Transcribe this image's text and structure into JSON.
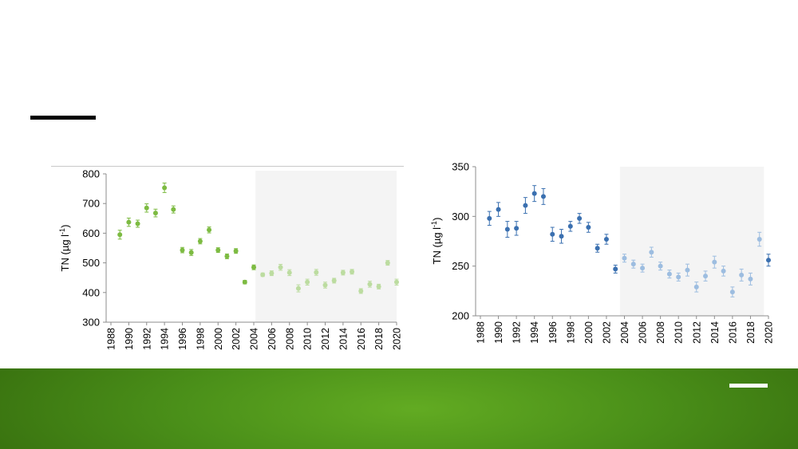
{
  "chart_data": [
    {
      "type": "scatter",
      "ylabel": "TN (µg l",
      "ylabel_sup": "-1",
      "ylabel_close": ")",
      "xlim": [
        1988,
        2020
      ],
      "ylim": [
        300,
        800
      ],
      "yticks": [
        300,
        400,
        500,
        600,
        700,
        800
      ],
      "xticks": [
        1988,
        1990,
        1992,
        1994,
        1996,
        1998,
        2000,
        2002,
        2004,
        2006,
        2008,
        2010,
        2012,
        2014,
        2016,
        2018,
        2020
      ],
      "shaded_from": 2004.2,
      "color_main": "#7dbb42",
      "color_light": "#bcdca0",
      "series": [
        {
          "x": [
            1989,
            1990,
            1991,
            1992,
            1993,
            1994,
            1995,
            1996,
            1997,
            1998,
            1999,
            2000,
            2001,
            2002,
            2003,
            2004
          ],
          "y": [
            595,
            637,
            632,
            685,
            668,
            753,
            680,
            543,
            535,
            573,
            611,
            543,
            522,
            540,
            435,
            485
          ],
          "err": [
            15,
            14,
            12,
            14,
            13,
            16,
            12,
            9,
            10,
            9,
            10,
            8,
            8,
            8,
            6,
            8
          ]
        },
        {
          "x": [
            2005,
            2006,
            2007,
            2008,
            2009,
            2010,
            2011,
            2012,
            2013,
            2014,
            2015,
            2016,
            2017,
            2018,
            2019,
            2020
          ],
          "y": [
            460,
            465,
            485,
            467,
            414,
            435,
            468,
            425,
            440,
            467,
            470,
            405,
            428,
            420,
            500,
            435
          ],
          "err": [
            6,
            8,
            10,
            10,
            12,
            10,
            10,
            10,
            8,
            8,
            8,
            8,
            10,
            8,
            8,
            10
          ]
        }
      ]
    },
    {
      "type": "scatter",
      "ylabel": "TN (µg l",
      "ylabel_sup": "-1",
      "ylabel_close": ")",
      "xlim": [
        1988,
        2020
      ],
      "ylim": [
        200,
        350
      ],
      "yticks": [
        200,
        250,
        300,
        350
      ],
      "xticks": [
        1988,
        1990,
        1992,
        1994,
        1996,
        1998,
        2000,
        2002,
        2004,
        2006,
        2008,
        2010,
        2012,
        2014,
        2016,
        2018,
        2020
      ],
      "shaded_from": 2003.5,
      "shaded_to": 2019.5,
      "color_main": "#3b70b0",
      "color_light": "#9dbde0",
      "series": [
        {
          "x": [
            1989,
            1990,
            1991,
            1992,
            1993,
            1994,
            1995,
            1996,
            1997,
            1998,
            1999,
            2000,
            2001,
            2002,
            2003
          ],
          "y": [
            298,
            307,
            287,
            288,
            311,
            323,
            320,
            282,
            280,
            290,
            298,
            289,
            268,
            277,
            247
          ],
          "err": [
            7,
            7,
            8,
            7,
            8,
            8,
            8,
            7,
            7,
            5,
            5,
            5,
            4,
            5,
            4
          ]
        },
        {
          "x": [
            2004,
            2005,
            2006,
            2007,
            2008,
            2009,
            2010,
            2011,
            2012,
            2013,
            2014,
            2015,
            2016,
            2017,
            2018,
            2019
          ],
          "y": [
            258,
            252,
            248,
            264,
            250,
            242,
            239,
            246,
            229,
            240,
            254,
            245,
            224,
            241,
            237,
            277
          ],
          "err": [
            4,
            4,
            4,
            5,
            4,
            4,
            4,
            6,
            5,
            5,
            6,
            5,
            5,
            6,
            6,
            7
          ]
        },
        {
          "x": [
            2020
          ],
          "y": [
            256
          ],
          "err": [
            6
          ]
        }
      ]
    }
  ]
}
